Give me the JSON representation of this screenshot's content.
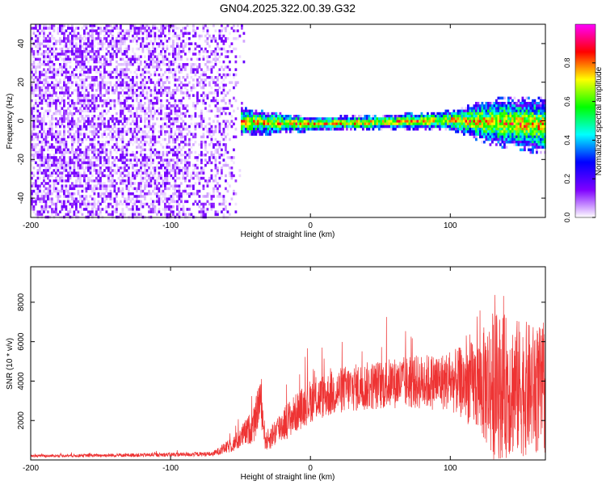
{
  "title": "GN04.2025.322.00.39.G32",
  "chart_data": [
    {
      "type": "heatmap",
      "title": "GN04.2025.322.00.39.G32",
      "xlabel": "Height of straight line (km)",
      "ylabel": "Frequency (Hz)",
      "xlim": [
        -200,
        168
      ],
      "ylim": [
        -50,
        50
      ],
      "x_ticks": [
        -200,
        -100,
        0,
        100
      ],
      "y_ticks": [
        -40,
        -20,
        0,
        20,
        40
      ],
      "colorbar": {
        "label": "Normalized spectral amplitude",
        "range": [
          0,
          1
        ],
        "ticks": [
          "0.0",
          "0.2",
          "0.4",
          "0.6",
          "0.8"
        ],
        "tick_values": [
          0.0,
          0.2,
          0.4,
          0.6,
          0.8
        ],
        "colors": [
          "#ffffff",
          "#7f00ff",
          "#0000ff",
          "#00ffff",
          "#00ff00",
          "#ffff00",
          "#ff0000",
          "#ff00ff"
        ]
      },
      "signal": {
        "center_freq_hz": 0,
        "band_start_km": -50,
        "noise_floor_end_km": -55,
        "band_segments": [
          {
            "x": -50,
            "center": 0,
            "halfwidth": 6
          },
          {
            "x": 0,
            "center": -1,
            "halfwidth": 3
          },
          {
            "x": 50,
            "center": 0,
            "halfwidth": 3
          },
          {
            "x": 100,
            "center": 1,
            "halfwidth": 4
          },
          {
            "x": 130,
            "center": 0,
            "halfwidth": 10
          },
          {
            "x": 168,
            "center": -2,
            "halfwidth": 12
          }
        ]
      }
    },
    {
      "type": "line",
      "xlabel": "Height of straight line (km)",
      "ylabel": "SNR (10 * v/v)",
      "xlim": [
        -200,
        168
      ],
      "ylim": [
        0,
        9800
      ],
      "x_ticks": [
        -200,
        -100,
        0,
        100
      ],
      "y_ticks": [
        2000,
        4000,
        6000,
        8000
      ],
      "color": "#ee3333",
      "envelope": [
        {
          "x": -200,
          "mean": 200,
          "spread": 60
        },
        {
          "x": -120,
          "mean": 250,
          "spread": 100
        },
        {
          "x": -70,
          "mean": 300,
          "spread": 120
        },
        {
          "x": -55,
          "mean": 800,
          "spread": 400
        },
        {
          "x": -40,
          "mean": 1800,
          "spread": 900
        },
        {
          "x": -36,
          "mean": 3200,
          "spread": 1200
        },
        {
          "x": -32,
          "mean": 900,
          "spread": 500
        },
        {
          "x": -20,
          "mean": 1800,
          "spread": 900
        },
        {
          "x": 0,
          "mean": 3000,
          "spread": 1100
        },
        {
          "x": 25,
          "mean": 3600,
          "spread": 1200
        },
        {
          "x": 60,
          "mean": 3900,
          "spread": 1300
        },
        {
          "x": 100,
          "mean": 4000,
          "spread": 1500
        },
        {
          "x": 120,
          "mean": 3800,
          "spread": 2400
        },
        {
          "x": 130,
          "mean": 3800,
          "spread": 3800
        },
        {
          "x": 168,
          "mean": 3500,
          "spread": 3200
        }
      ]
    }
  ]
}
